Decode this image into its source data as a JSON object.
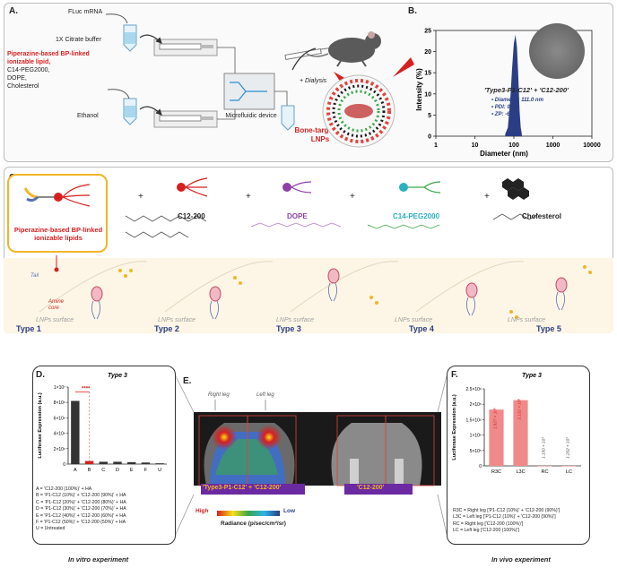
{
  "panelA": {
    "label": "A.",
    "fluc": "FLuc mRNA",
    "citrate": "1X Citrate buffer",
    "lipid_title": "Piperazine-based BP-linked ionizable lipid,",
    "lipid_rest": [
      "C14-PEG2000,",
      "DOPE,",
      "Cholesterol"
    ],
    "ethanol": "Ethanol",
    "device": "Microfluidic device",
    "dialysis": "+ Dialysis",
    "lnp": [
      "Bone-targeting",
      "LNPs"
    ]
  },
  "panelB": {
    "label": "B.",
    "ylabel": "Intensity (%)",
    "xlabel": "Diameter (nm)",
    "formulation": "'Type3-P1-C12' + 'C12-200'",
    "stats": [
      "Diameter: 111.0 nm",
      "PDI: 0.12",
      "ZP: -6.11"
    ]
  },
  "panelC": {
    "label": "C.",
    "plus": "+",
    "lipid_title": [
      "Piperazine-based BP-linked",
      "ionizable lipids"
    ],
    "components": [
      "C12-200",
      "DOPE",
      "C14-PEG2000",
      "Cholesterol"
    ],
    "surf": "LNPs surface",
    "tail": "Tail",
    "amine": [
      "Amine",
      "core"
    ],
    "types": [
      "Type 1",
      "Type 2",
      "Type 3",
      "Type 4",
      "Type 5"
    ]
  },
  "panelD": {
    "label": "D.",
    "title": "Type 3",
    "ylabel": "Luciferase Expression (a.u.)",
    "sig": "****",
    "legend": [
      "A = 'C12-200 (100%)' + HA",
      "B = 'P1-C12 (10%)' + 'C12-200 (90%)' + HA",
      "C = 'P1-C12 (20%)' + 'C12-200 (80%)' + HA",
      "D = 'P1-C12 (30%)' + 'C12-200 (70%)' + HA",
      "E = 'P1-C12 (40%)' + 'C12-200 (60%)' + HA",
      "F = 'P1-C12 (50%)' + 'C12-200 (50%)' + HA",
      "U = Untreated"
    ],
    "footer": "In vitro experiment"
  },
  "panelE": {
    "label": "E.",
    "right_leg": "Right leg",
    "left_leg": "Left leg",
    "caption1": "'Type3-P1-C12' + 'C12-200'",
    "caption2": "'C12-200'",
    "high": "High",
    "low": "Low",
    "radiance": "Radiance (p/sec/cm²/sr)"
  },
  "panelF": {
    "label": "F.",
    "title": "Type 3",
    "ylabel": "Luciferase Expression (a.u.)",
    "legend": [
      "R3C = Right leg ['P1-C12 (10%)' + 'C12-200 (90%)']",
      "L3C = Left leg ['P1-C12 (10%)' + 'C12-200 (90%)']",
      "RC = Right leg ['C12-200 (100%)']",
      "LC = Left leg ['C12-200 (100%)']"
    ],
    "footer": "In vivo experiment"
  },
  "chart_data": [
    {
      "type": "line",
      "title": "'Type3-P1-C12' + 'C12-200'",
      "xlabel": "Diameter (nm)",
      "ylabel": "Intensity (%)",
      "xscale": "log",
      "xlim": [
        1,
        10000
      ],
      "ylim": [
        0,
        25
      ],
      "x_ticks": [
        "1",
        "10",
        "100",
        "1000",
        "10000"
      ],
      "y_ticks": [
        "0",
        "5",
        "10",
        "15",
        "20",
        "25"
      ],
      "x": [
        60,
        70,
        80,
        90,
        100,
        110,
        120,
        130,
        140,
        150,
        160
      ],
      "values": [
        0.5,
        2,
        8,
        16,
        22,
        24,
        21,
        14,
        6,
        2,
        0.5
      ]
    },
    {
      "type": "bar",
      "title": "Type 3",
      "categories": [
        "A",
        "B",
        "C",
        "D",
        "E",
        "F",
        "U"
      ],
      "values": [
        8200000.0,
        400000.0,
        300000.0,
        300000.0,
        250000.0,
        200000.0,
        100000.0
      ],
      "ylabel": "Luciferase Expression (a.u.)",
      "ylim": [
        0,
        10000000.0
      ],
      "y_ticks": [
        "0",
        "2×10⁶",
        "4×10⁶",
        "6×10⁶",
        "8×10⁶",
        "1×10⁷"
      ]
    },
    {
      "type": "bar",
      "title": "Type 3",
      "categories": [
        "R3C",
        "L3C",
        "RC",
        "LC"
      ],
      "values": [
        1827000,
        2132000,
        1150,
        1202
      ],
      "data_labels": [
        "1.827 × 10⁶",
        "2.132 × 10⁶",
        "1.150 × 10³",
        "1.202 × 10³"
      ],
      "ylabel": "Luciferase Expression (a.u.)",
      "ylim": [
        0,
        2500000
      ],
      "y_ticks": [
        "0",
        "5×10⁵",
        "1×10⁶",
        "1.5×10⁶",
        "2×10⁶",
        "2.5×10⁶"
      ]
    }
  ]
}
